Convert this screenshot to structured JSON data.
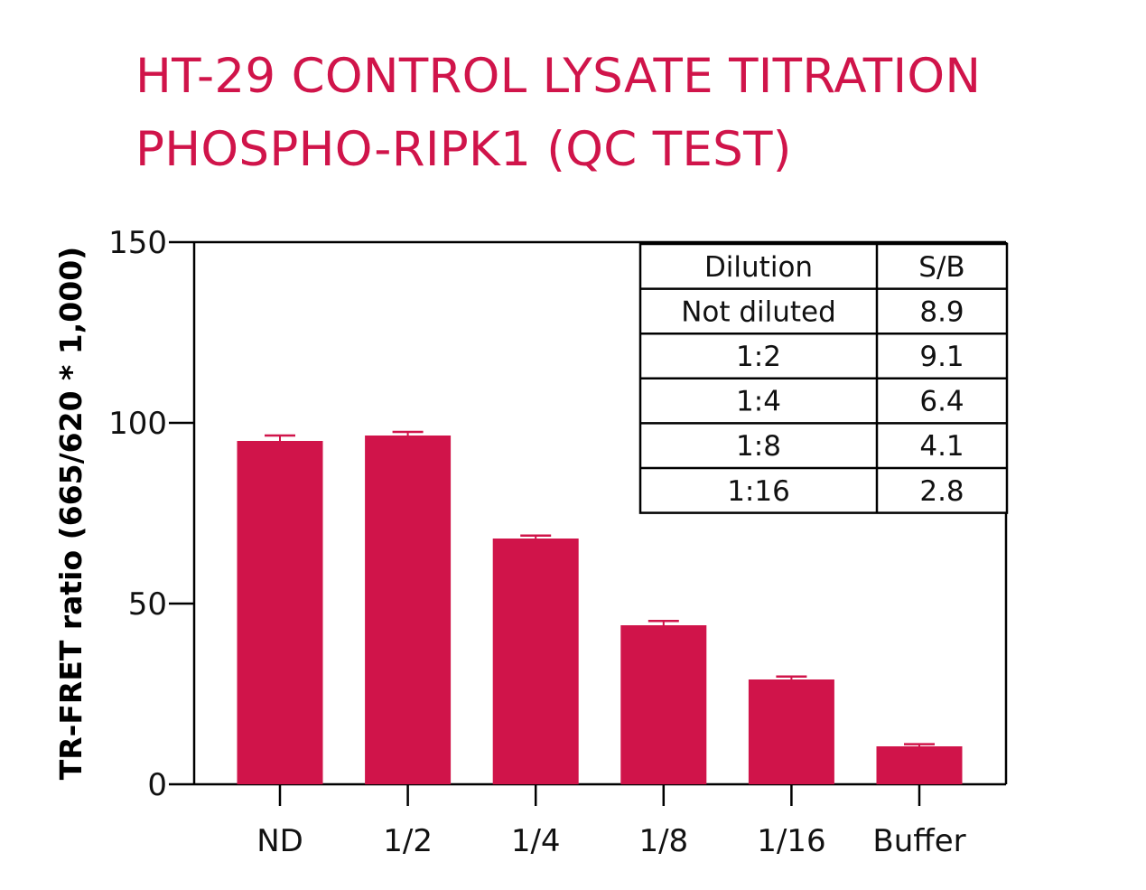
{
  "title": {
    "line1": "HT-29 CONTROL LYSATE TITRATION",
    "line2": "PHOSPHO-RIPK1 (QC TEST)"
  },
  "colors": {
    "bar": "#D0144A",
    "title": "#D0144A",
    "axis": "#000000"
  },
  "chart_data": {
    "type": "bar",
    "categories": [
      "ND",
      "1/2",
      "1/4",
      "1/8",
      "1/16",
      "Buffer"
    ],
    "values": [
      95,
      96.5,
      68,
      44,
      29,
      10.5
    ],
    "error": [
      1.5,
      1,
      0.8,
      1.2,
      0.8,
      0.6
    ],
    "ylabel": "TR-FRET ratio (665/620 * 1,000)",
    "xlabel": "",
    "ylim": [
      0,
      150
    ],
    "yticks": [
      0,
      50,
      100,
      150
    ],
    "grid": false,
    "legend": "none"
  },
  "table": {
    "headers": [
      "Dilution",
      "S/B"
    ],
    "rows": [
      [
        "Not diluted",
        "8.9"
      ],
      [
        "1:2",
        "9.1"
      ],
      [
        "1:4",
        "6.4"
      ],
      [
        "1:8",
        "4.1"
      ],
      [
        "1:16",
        "2.8"
      ]
    ]
  }
}
